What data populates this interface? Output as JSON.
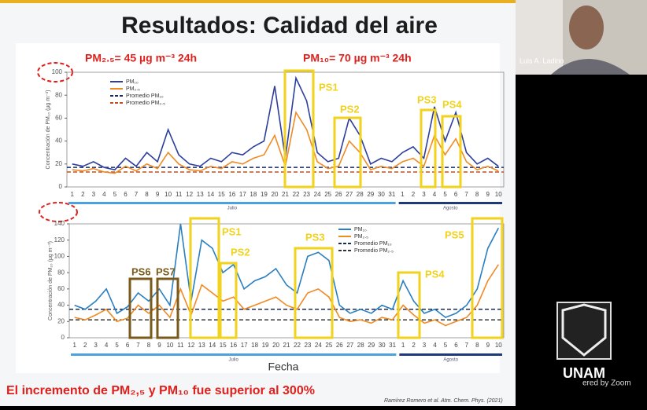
{
  "slide": {
    "title": "Resultados: Calidad del aire",
    "limit_pm25": "PM₂.₅= 45 µg m⁻³ 24h",
    "limit_pm10": "PM₁₀= 70 µg m⁻³ 24h",
    "x_label": "Fecha",
    "conclusion": "El incremento de PM₂,₅ y PM₁₀ fue superior al 300%",
    "citation": "Ramírez Romero et al. Atm. Chem. Phys. (2021)"
  },
  "zoom": {
    "participant": "Luis A. Ladino",
    "logo_text": "UNAM",
    "powered": "ered by Zoom"
  },
  "chart_data": [
    {
      "type": "line",
      "y_label": "Concentración de PM₁₀ (µg m⁻³)",
      "categories": [
        "1",
        "2",
        "3",
        "4",
        "5",
        "6",
        "7",
        "8",
        "9",
        "10",
        "11",
        "12",
        "13",
        "14",
        "15",
        "16",
        "17",
        "18",
        "19",
        "20",
        "21",
        "22",
        "23",
        "24",
        "25",
        "26",
        "27",
        "28",
        "29",
        "30",
        "31",
        "1",
        "2",
        "3",
        "4",
        "5",
        "6",
        "7",
        "8",
        "9",
        "10"
      ],
      "months": [
        {
          "name": "Julio",
          "color": "#4aa3df"
        },
        {
          "name": "Agosto",
          "color": "#1f3a7a"
        }
      ],
      "series": [
        {
          "name": "PM₁₀",
          "color": "#2c3e9e",
          "values": [
            20,
            18,
            22,
            17,
            15,
            25,
            18,
            30,
            22,
            50,
            28,
            20,
            18,
            25,
            22,
            30,
            28,
            35,
            40,
            88,
            25,
            95,
            75,
            30,
            22,
            25,
            60,
            45,
            20,
            25,
            22,
            30,
            35,
            25,
            70,
            40,
            65,
            30,
            20,
            25,
            18
          ]
        },
        {
          "name": "PM₂.₅",
          "color": "#f08a24",
          "values": [
            15,
            14,
            16,
            13,
            12,
            18,
            14,
            20,
            16,
            30,
            20,
            15,
            14,
            18,
            16,
            22,
            20,
            25,
            28,
            45,
            18,
            65,
            50,
            22,
            16,
            18,
            40,
            30,
            15,
            18,
            16,
            22,
            25,
            18,
            45,
            28,
            42,
            22,
            15,
            18,
            14
          ]
        }
      ],
      "averages": [
        {
          "name": "Promedio PM₁₀",
          "color": "#1a2a5e",
          "value": 17
        },
        {
          "name": "Promedio PM₂.₅",
          "color": "#c0501e",
          "value": 13
        }
      ],
      "highlights": [
        {
          "label": "PS1",
          "color": "#f2d21b"
        },
        {
          "label": "PS2",
          "color": "#f2d21b"
        },
        {
          "label": "PS3",
          "color": "#f2d21b"
        },
        {
          "label": "PS4",
          "color": "#f2d21b"
        }
      ],
      "ylim": [
        0,
        100
      ],
      "yticks": [
        0,
        20,
        40,
        60,
        80,
        100
      ]
    },
    {
      "type": "line",
      "y_label": "Concentración de PM₁₀ (µg m⁻³)",
      "categories": [
        "1",
        "2",
        "3",
        "4",
        "5",
        "6",
        "7",
        "8",
        "9",
        "10",
        "11",
        "12",
        "13",
        "14",
        "15",
        "16",
        "17",
        "18",
        "19",
        "20",
        "21",
        "22",
        "23",
        "24",
        "25",
        "26",
        "27",
        "28",
        "29",
        "30",
        "31",
        "1",
        "2",
        "3",
        "4",
        "5",
        "6",
        "7",
        "8",
        "9",
        "10"
      ],
      "months": [
        {
          "name": "Julio",
          "color": "#4aa3df"
        },
        {
          "name": "Agosto",
          "color": "#1f3a7a"
        }
      ],
      "series": [
        {
          "name": "PM₁₀",
          "color": "#2a7fc0",
          "values": [
            40,
            35,
            45,
            60,
            30,
            38,
            55,
            45,
            60,
            40,
            140,
            45,
            120,
            110,
            80,
            90,
            60,
            70,
            75,
            85,
            65,
            55,
            100,
            105,
            95,
            40,
            30,
            35,
            30,
            40,
            35,
            70,
            45,
            30,
            35,
            25,
            30,
            40,
            60,
            110,
            135
          ]
        },
        {
          "name": "PM₂.₅",
          "color": "#f08a24",
          "values": [
            25,
            22,
            28,
            35,
            20,
            24,
            40,
            30,
            40,
            25,
            60,
            28,
            65,
            55,
            45,
            50,
            35,
            40,
            45,
            50,
            40,
            35,
            55,
            60,
            50,
            25,
            20,
            22,
            18,
            25,
            22,
            40,
            28,
            18,
            22,
            15,
            20,
            25,
            40,
            70,
            90
          ]
        }
      ],
      "averages": [
        {
          "name": "Promedio PM₁₀",
          "color": "#1a2a5e",
          "value": 35
        },
        {
          "name": "Promedio PM₂.₅",
          "color": "#333333",
          "value": 22
        }
      ],
      "highlights": [
        {
          "label": "PS1",
          "color": "#f2d21b"
        },
        {
          "label": "PS2",
          "color": "#f2d21b"
        },
        {
          "label": "PS3",
          "color": "#f2d21b"
        },
        {
          "label": "PS4",
          "color": "#f2d21b"
        },
        {
          "label": "PS5",
          "color": "#f2d21b"
        },
        {
          "label": "PS6",
          "color": "#7a5a1a"
        },
        {
          "label": "PS7",
          "color": "#7a5a1a"
        }
      ],
      "ylim": [
        0,
        140
      ],
      "yticks": [
        0,
        20,
        40,
        60,
        80,
        100,
        120,
        140
      ]
    }
  ]
}
